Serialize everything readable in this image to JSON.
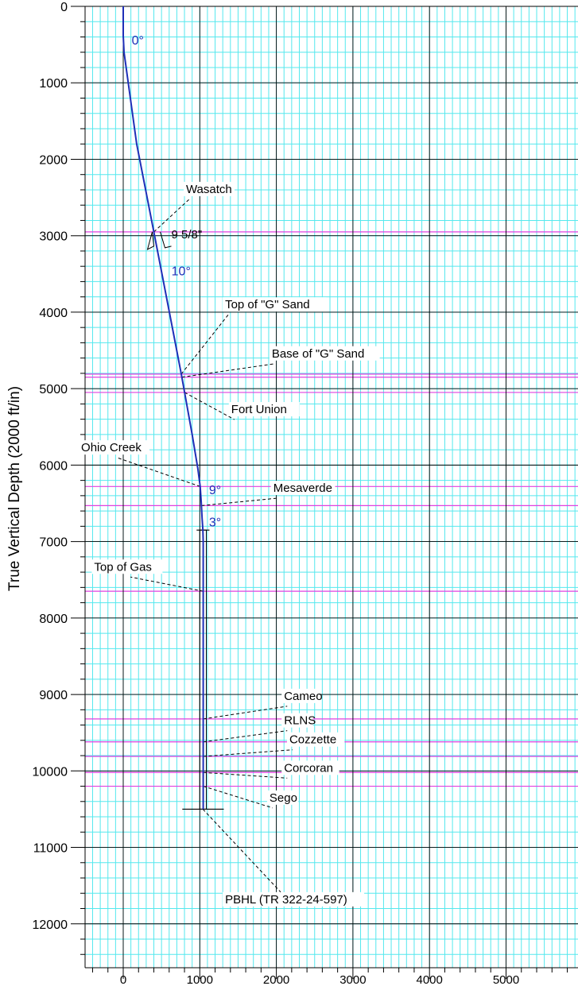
{
  "chart_data": {
    "type": "line",
    "ylabel": "True Vertical Depth (2000 ft/in)",
    "xlim": [
      -600,
      5950
    ],
    "ylim": [
      0,
      12500
    ],
    "x_ticks": [
      0,
      1000,
      2000,
      3000,
      4000,
      5000
    ],
    "x_tick_labels": [
      "0",
      "1000",
      "2000",
      "3000",
      "4000",
      "5000"
    ],
    "y_ticks": [
      0,
      1000,
      2000,
      3000,
      4000,
      5000,
      6000,
      7000,
      8000,
      9000,
      10000,
      11000,
      12000
    ],
    "y_tick_labels": [
      "0",
      "1000",
      "2000",
      "3000",
      "4000",
      "5000",
      "6000",
      "7000",
      "8000",
      "9000",
      "10000",
      "11000",
      "12000"
    ],
    "grid": true,
    "colors": {
      "minor_grid": "#55e8ee",
      "major_grid": "#000000",
      "formation_line": "#e040e0",
      "well_path": "#1f2fb8",
      "angle_label": "#1f2fb8"
    },
    "series": [
      {
        "x": [
          0,
          0,
          10,
          175,
          400,
          660,
          760,
          900,
          975,
          1005,
          1020,
          1030,
          1040,
          1045,
          1045
        ],
        "y": [
          0,
          380,
          600,
          1800,
          2950,
          4300,
          4820,
          5600,
          6050,
          6280,
          6500,
          6700,
          6850,
          7000,
          10500
        ]
      }
    ],
    "completion": {
      "x": [
        1000,
        1085
      ],
      "y_top": 6850,
      "y_bottom": 10500
    },
    "casing": {
      "label": "9 5/8\"",
      "depth": 2950,
      "x": 400
    },
    "formations": [
      {
        "name": "Wasatch",
        "depth": 2950,
        "label_x": 820,
        "label_y": 2420
      },
      {
        "name": "Top of \"G\" Sand",
        "depth": 4810,
        "label_x": 1330,
        "label_y": 3930
      },
      {
        "name": "Base of \"G\" Sand",
        "depth": 4850,
        "label_x": 1940,
        "label_y": 4570
      },
      {
        "name": "Fort Union",
        "depth": 5050,
        "label_x": 1410,
        "label_y": 5300
      },
      {
        "name": "Ohio Creek",
        "depth": 6280,
        "label_x": -550,
        "label_y": 5800
      },
      {
        "name": "Mesaverde",
        "depth": 6530,
        "label_x": 1960,
        "label_y": 6330
      },
      {
        "name": "Top of Gas",
        "depth": 7650,
        "label_x": -380,
        "label_y": 7360
      },
      {
        "name": "Cameo",
        "depth": 9320,
        "label_x": 2100,
        "label_y": 9050
      },
      {
        "name": "RLNS",
        "depth": 9620,
        "label_x": 2100,
        "label_y": 9370
      },
      {
        "name": "Cozzette",
        "depth": 9810,
        "label_x": 2170,
        "label_y": 9620
      },
      {
        "name": "Corcoran",
        "depth": 10020,
        "label_x": 2100,
        "label_y": 9990
      },
      {
        "name": "Sego",
        "depth": 10200,
        "label_x": 1910,
        "label_y": 10380
      }
    ],
    "formation_lines": [
      2950,
      4810,
      4850,
      5050,
      6280,
      6530,
      7650,
      9320,
      9620,
      9810,
      10020,
      10200
    ],
    "annotations": [
      {
        "text": "0°",
        "x": 110,
        "y": 500,
        "color": "angle"
      },
      {
        "text": "10°",
        "x": 630,
        "y": 3520,
        "color": "angle"
      },
      {
        "text": "9°",
        "x": 1120,
        "y": 6380,
        "color": "angle"
      },
      {
        "text": "3°",
        "x": 1120,
        "y": 6800,
        "color": "angle"
      },
      {
        "text": "PBHL (TR 322-24-597)",
        "x": 1330,
        "y": 11710,
        "color": "black"
      }
    ]
  }
}
